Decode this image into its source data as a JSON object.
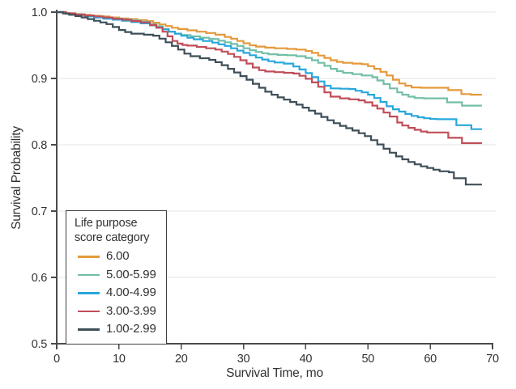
{
  "figure": {
    "background": "#FFFFFF",
    "axis_color": "#4A4A4B",
    "grid_color": "#E6E6E6",
    "text_color": "#323232",
    "legend_border_color": "#3F3F3F"
  },
  "chart_data": {
    "type": "line",
    "subtype": "kaplan-meier-step-survival",
    "title": "",
    "xlabel": "Survival Time, mo",
    "ylabel": "Survival Probability",
    "xlim": [
      0,
      70
    ],
    "ylim": [
      0.5,
      1.0
    ],
    "xticks": [
      0,
      10,
      20,
      30,
      40,
      50,
      60,
      70
    ],
    "ytick_values": [
      0.5,
      0.6,
      0.7,
      0.8,
      0.9,
      1.0
    ],
    "ytick_labels": [
      "0.5",
      "0.6",
      "0.7",
      "0.8",
      "0.9",
      "1.0"
    ],
    "grid": "horizontal",
    "legend": {
      "title": "Life purpose score category",
      "position": "lower-left"
    },
    "series": [
      {
        "label": "6.00",
        "color": "#E49A3C",
        "points": [
          [
            0,
            1.0
          ],
          [
            1.2,
            0.9985
          ],
          [
            2.5,
            0.997
          ],
          [
            4,
            0.996
          ],
          [
            5.5,
            0.9945
          ],
          [
            7,
            0.9935
          ],
          [
            8.5,
            0.992
          ],
          [
            10,
            0.9905
          ],
          [
            11.5,
            0.9895
          ],
          [
            13,
            0.988
          ],
          [
            14.5,
            0.9865
          ],
          [
            15.5,
            0.984
          ],
          [
            16.5,
            0.9815
          ],
          [
            17.5,
            0.979
          ],
          [
            18.5,
            0.9765
          ],
          [
            19.5,
            0.9745
          ],
          [
            21,
            0.9725
          ],
          [
            22.5,
            0.9705
          ],
          [
            24,
            0.9685
          ],
          [
            25.5,
            0.966
          ],
          [
            27,
            0.9625
          ],
          [
            28,
            0.96
          ],
          [
            29,
            0.9565
          ],
          [
            30,
            0.953
          ],
          [
            31,
            0.95
          ],
          [
            32,
            0.948
          ],
          [
            33.5,
            0.9465
          ],
          [
            35,
            0.9455
          ],
          [
            37,
            0.9445
          ],
          [
            38.5,
            0.9435
          ],
          [
            40,
            0.9415
          ],
          [
            41,
            0.9385
          ],
          [
            42,
            0.9345
          ],
          [
            43,
            0.931
          ],
          [
            44,
            0.9275
          ],
          [
            45,
            0.925
          ],
          [
            46,
            0.9235
          ],
          [
            47.5,
            0.9225
          ],
          [
            49,
            0.9215
          ],
          [
            50,
            0.9185
          ],
          [
            51,
            0.9145
          ],
          [
            52,
            0.91
          ],
          [
            53,
            0.9045
          ],
          [
            54,
            0.898
          ],
          [
            55,
            0.8925
          ],
          [
            56,
            0.889
          ],
          [
            57,
            0.8865
          ],
          [
            58.5,
            0.886
          ],
          [
            62.9,
            0.8825
          ],
          [
            65,
            0.8765
          ],
          [
            66.5,
            0.8755
          ],
          [
            68.3,
            0.8755
          ]
        ]
      },
      {
        "label": "5.00-5.99",
        "color": "#72BFA7",
        "points": [
          [
            0,
            1.0
          ],
          [
            1.5,
            0.998
          ],
          [
            3,
            0.9965
          ],
          [
            4.5,
            0.995
          ],
          [
            6,
            0.9935
          ],
          [
            7.5,
            0.992
          ],
          [
            9,
            0.9905
          ],
          [
            10.5,
            0.989
          ],
          [
            12,
            0.9875
          ],
          [
            13.5,
            0.9855
          ],
          [
            15,
            0.982
          ],
          [
            16,
            0.9785
          ],
          [
            17,
            0.9745
          ],
          [
            18,
            0.9705
          ],
          [
            19,
            0.9675
          ],
          [
            20,
            0.9655
          ],
          [
            21.5,
            0.9635
          ],
          [
            23,
            0.9615
          ],
          [
            24.5,
            0.9595
          ],
          [
            26,
            0.957
          ],
          [
            27,
            0.9545
          ],
          [
            28,
            0.952
          ],
          [
            29,
            0.949
          ],
          [
            30,
            0.9455
          ],
          [
            31,
            0.9425
          ],
          [
            32,
            0.94
          ],
          [
            33,
            0.938
          ],
          [
            34,
            0.9365
          ],
          [
            35.5,
            0.9355
          ],
          [
            37,
            0.935
          ],
          [
            38.5,
            0.9335
          ],
          [
            40,
            0.931
          ],
          [
            41,
            0.9275
          ],
          [
            42,
            0.9235
          ],
          [
            43,
            0.919
          ],
          [
            44,
            0.9145
          ],
          [
            45,
            0.911
          ],
          [
            46,
            0.9085
          ],
          [
            47.5,
            0.9065
          ],
          [
            49,
            0.9045
          ],
          [
            50.7,
            0.902
          ],
          [
            51.5,
            0.897
          ],
          [
            52.5,
            0.8915
          ],
          [
            53.5,
            0.885
          ],
          [
            54.7,
            0.879
          ],
          [
            55.5,
            0.8755
          ],
          [
            56.5,
            0.8725
          ],
          [
            57.5,
            0.8705
          ],
          [
            59,
            0.87
          ],
          [
            62.7,
            0.864
          ],
          [
            65.1,
            0.859
          ],
          [
            68.3,
            0.859
          ]
        ]
      },
      {
        "label": "4.00-4.99",
        "color": "#29A7DB",
        "points": [
          [
            0,
            1.0
          ],
          [
            1.5,
            0.9975
          ],
          [
            3,
            0.9955
          ],
          [
            4.5,
            0.9935
          ],
          [
            6,
            0.992
          ],
          [
            7.5,
            0.99
          ],
          [
            9,
            0.9885
          ],
          [
            10.5,
            0.987
          ],
          [
            12,
            0.985
          ],
          [
            13.5,
            0.983
          ],
          [
            15,
            0.98
          ],
          [
            16,
            0.977
          ],
          [
            17,
            0.974
          ],
          [
            18,
            0.9705
          ],
          [
            19,
            0.9675
          ],
          [
            20,
            0.9645
          ],
          [
            21,
            0.9615
          ],
          [
            22,
            0.959
          ],
          [
            23.5,
            0.9565
          ],
          [
            25,
            0.954
          ],
          [
            26,
            0.9515
          ],
          [
            27,
            0.949
          ],
          [
            28,
            0.9455
          ],
          [
            29,
            0.942
          ],
          [
            30,
            0.9385
          ],
          [
            31,
            0.935
          ],
          [
            32,
            0.9315
          ],
          [
            33,
            0.9285
          ],
          [
            34,
            0.926
          ],
          [
            35,
            0.924
          ],
          [
            36.5,
            0.9225
          ],
          [
            38,
            0.918
          ],
          [
            39,
            0.9135
          ],
          [
            40,
            0.908
          ],
          [
            41,
            0.902
          ],
          [
            42,
            0.8955
          ],
          [
            43,
            0.889
          ],
          [
            44,
            0.885
          ],
          [
            45.5,
            0.8845
          ],
          [
            47,
            0.884
          ],
          [
            48,
            0.8815
          ],
          [
            49,
            0.879
          ],
          [
            50,
            0.8755
          ],
          [
            51,
            0.8705
          ],
          [
            52,
            0.8645
          ],
          [
            53,
            0.858
          ],
          [
            54,
            0.8535
          ],
          [
            55,
            0.85
          ],
          [
            56,
            0.8465
          ],
          [
            57,
            0.8435
          ],
          [
            58,
            0.8415
          ],
          [
            59,
            0.84
          ],
          [
            60,
            0.839
          ],
          [
            61,
            0.8385
          ],
          [
            64.2,
            0.8295
          ],
          [
            66.6,
            0.8235
          ],
          [
            68.3,
            0.8235
          ]
        ]
      },
      {
        "label": "3.00-3.99",
        "color": "#C04D58",
        "points": [
          [
            0,
            1.0
          ],
          [
            1.5,
            0.998
          ],
          [
            3,
            0.9965
          ],
          [
            4.5,
            0.995
          ],
          [
            6,
            0.9935
          ],
          [
            7.5,
            0.992
          ],
          [
            9,
            0.99
          ],
          [
            10.5,
            0.9885
          ],
          [
            12,
            0.9865
          ],
          [
            13.5,
            0.9845
          ],
          [
            15,
            0.9805
          ],
          [
            16,
            0.9765
          ],
          [
            17,
            0.9705
          ],
          [
            17.8,
            0.9635
          ],
          [
            18.6,
            0.9565
          ],
          [
            19.4,
            0.9525
          ],
          [
            20.2,
            0.9505
          ],
          [
            21,
            0.9495
          ],
          [
            22.5,
            0.9475
          ],
          [
            24,
            0.9455
          ],
          [
            25.5,
            0.9435
          ],
          [
            26.5,
            0.9405
          ],
          [
            27.5,
            0.937
          ],
          [
            28.5,
            0.9325
          ],
          [
            29.5,
            0.9275
          ],
          [
            30.5,
            0.9225
          ],
          [
            31.5,
            0.9165
          ],
          [
            32.5,
            0.9125
          ],
          [
            33.5,
            0.9105
          ],
          [
            35,
            0.9095
          ],
          [
            36.5,
            0.9085
          ],
          [
            38,
            0.9075
          ],
          [
            39,
            0.904
          ],
          [
            40,
            0.8995
          ],
          [
            41,
            0.894
          ],
          [
            42,
            0.8875
          ],
          [
            43,
            0.879
          ],
          [
            44,
            0.8725
          ],
          [
            45.5,
            0.87
          ],
          [
            47,
            0.8685
          ],
          [
            48.5,
            0.867
          ],
          [
            49.5,
            0.864
          ],
          [
            50.7,
            0.859
          ],
          [
            51.5,
            0.8545
          ],
          [
            52.5,
            0.8485
          ],
          [
            53.5,
            0.8425
          ],
          [
            54.7,
            0.8335
          ],
          [
            55.5,
            0.829
          ],
          [
            56.5,
            0.8255
          ],
          [
            57.5,
            0.8225
          ],
          [
            58.5,
            0.82
          ],
          [
            59.5,
            0.8185
          ],
          [
            62.9,
            0.8105
          ],
          [
            65.1,
            0.8025
          ],
          [
            68.3,
            0.8025
          ]
        ]
      },
      {
        "label": "1.00-2.99",
        "color": "#3E4F58",
        "points": [
          [
            0,
            1.0
          ],
          [
            1,
            0.998
          ],
          [
            2,
            0.996
          ],
          [
            3,
            0.994
          ],
          [
            4,
            0.992
          ],
          [
            5,
            0.9895
          ],
          [
            6,
            0.987
          ],
          [
            7,
            0.9845
          ],
          [
            8,
            0.982
          ],
          [
            9,
            0.9775
          ],
          [
            10,
            0.973
          ],
          [
            11,
            0.97
          ],
          [
            12,
            0.9675
          ],
          [
            14,
            0.966
          ],
          [
            15.5,
            0.9645
          ],
          [
            16.5,
            0.96
          ],
          [
            17.5,
            0.9545
          ],
          [
            18.5,
            0.949
          ],
          [
            19.5,
            0.9435
          ],
          [
            20.5,
            0.9375
          ],
          [
            21.5,
            0.9335
          ],
          [
            23,
            0.9305
          ],
          [
            24.5,
            0.928
          ],
          [
            25.5,
            0.9245
          ],
          [
            26.5,
            0.92
          ],
          [
            27.5,
            0.9145
          ],
          [
            28.5,
            0.909
          ],
          [
            29.5,
            0.9035
          ],
          [
            30.5,
            0.898
          ],
          [
            31.5,
            0.892
          ],
          [
            32.5,
            0.886
          ],
          [
            33.5,
            0.88
          ],
          [
            34.5,
            0.8755
          ],
          [
            35.5,
            0.8715
          ],
          [
            36.5,
            0.868
          ],
          [
            37.5,
            0.8645
          ],
          [
            38.5,
            0.8605
          ],
          [
            39.5,
            0.856
          ],
          [
            40.5,
            0.8515
          ],
          [
            41.5,
            0.847
          ],
          [
            42.5,
            0.842
          ],
          [
            43.5,
            0.837
          ],
          [
            44.5,
            0.8325
          ],
          [
            45.5,
            0.8285
          ],
          [
            46.5,
            0.825
          ],
          [
            47.5,
            0.8215
          ],
          [
            48.5,
            0.8175
          ],
          [
            49.5,
            0.813
          ],
          [
            50.5,
            0.807
          ],
          [
            51.5,
            0.8005
          ],
          [
            52.5,
            0.794
          ],
          [
            53.5,
            0.788
          ],
          [
            54.5,
            0.7825
          ],
          [
            55.5,
            0.778
          ],
          [
            56.5,
            0.774
          ],
          [
            57.5,
            0.7705
          ],
          [
            58.5,
            0.7675
          ],
          [
            59.5,
            0.765
          ],
          [
            60.5,
            0.7625
          ],
          [
            61.5,
            0.76
          ],
          [
            63,
            0.7585
          ],
          [
            63.8,
            0.7495
          ],
          [
            65.7,
            0.74
          ],
          [
            68.3,
            0.74
          ]
        ]
      }
    ]
  }
}
